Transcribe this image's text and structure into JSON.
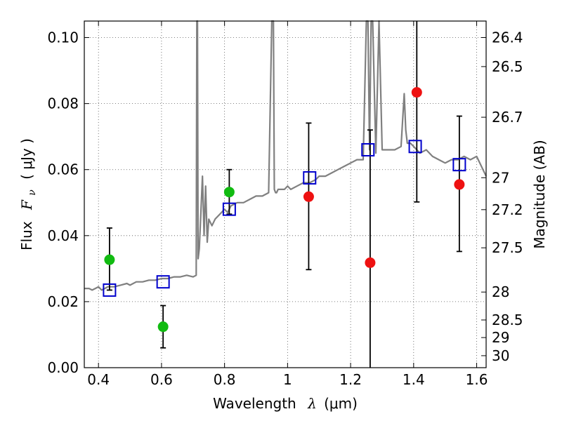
{
  "chart_data": {
    "type": "scatter",
    "title": "",
    "xlabel": "Wavelength",
    "xlabel_symbol": "λ",
    "xlabel_unit": "(μm)",
    "ylabel": "Flux",
    "ylabel_symbol": "F",
    "ylabel_subscript": "ν",
    "ylabel_unit": "( μJy )",
    "ylabel_right": "Magnitude (AB)",
    "xlim": [
      0.355,
      1.63
    ],
    "ylim": [
      0.0,
      0.105
    ],
    "grid": true,
    "x_ticks": [
      {
        "value": 0.4,
        "label": "0.4"
      },
      {
        "value": 0.6,
        "label": "0.6"
      },
      {
        "value": 0.8,
        "label": "0.8"
      },
      {
        "value": 1.0,
        "label": "1"
      },
      {
        "value": 1.2,
        "label": "1.2"
      },
      {
        "value": 1.4,
        "label": "1.4"
      },
      {
        "value": 1.6,
        "label": "1.6"
      }
    ],
    "y_ticks": [
      {
        "value": 0.0,
        "label": "0.00"
      },
      {
        "value": 0.02,
        "label": "0.02"
      },
      {
        "value": 0.04,
        "label": "0.04"
      },
      {
        "value": 0.06,
        "label": "0.06"
      },
      {
        "value": 0.08,
        "label": "0.08"
      },
      {
        "value": 0.1,
        "label": "0.10"
      }
    ],
    "right_ticks": [
      {
        "value": 26.4,
        "label": "26.4"
      },
      {
        "value": 26.5,
        "label": "26.5"
      },
      {
        "value": 26.7,
        "label": "26.7"
      },
      {
        "value": 27.0,
        "label": "27"
      },
      {
        "value": 27.2,
        "label": "27.2"
      },
      {
        "value": 27.5,
        "label": "27.5"
      },
      {
        "value": 28.0,
        "label": "28"
      },
      {
        "value": 28.5,
        "label": "28.5"
      },
      {
        "value": 29.0,
        "label": "29"
      },
      {
        "value": 30.0,
        "label": "30"
      }
    ],
    "colors": {
      "spectrum": "#808080",
      "model_box": "#0000cc",
      "green_obs": "#11bb11",
      "red_obs": "#ee1111",
      "errorbar": "#000000",
      "grid": "#555555"
    },
    "spectrum": {
      "x": [
        0.355,
        0.37,
        0.38,
        0.39,
        0.4,
        0.41,
        0.42,
        0.43,
        0.45,
        0.47,
        0.49,
        0.5,
        0.52,
        0.54,
        0.56,
        0.58,
        0.6,
        0.62,
        0.64,
        0.66,
        0.68,
        0.7,
        0.71,
        0.712,
        0.714,
        0.716,
        0.72,
        0.73,
        0.735,
        0.74,
        0.745,
        0.75,
        0.76,
        0.77,
        0.78,
        0.79,
        0.8,
        0.81,
        0.82,
        0.84,
        0.86,
        0.88,
        0.9,
        0.92,
        0.94,
        0.95,
        0.955,
        0.958,
        0.962,
        0.965,
        0.97,
        0.99,
        1.0,
        1.01,
        1.03,
        1.05,
        1.07,
        1.09,
        1.1,
        1.12,
        1.14,
        1.16,
        1.18,
        1.2,
        1.22,
        1.24,
        1.25,
        1.255,
        1.26,
        1.265,
        1.27,
        1.28,
        1.29,
        1.3,
        1.32,
        1.34,
        1.36,
        1.37,
        1.375,
        1.38,
        1.39,
        1.4,
        1.42,
        1.44,
        1.46,
        1.48,
        1.5,
        1.52,
        1.54,
        1.56,
        1.58,
        1.6,
        1.62,
        1.63
      ],
      "y": [
        0.024,
        0.024,
        0.0235,
        0.024,
        0.0245,
        0.0235,
        0.024,
        0.0245,
        0.0245,
        0.025,
        0.0255,
        0.025,
        0.026,
        0.026,
        0.0265,
        0.0265,
        0.027,
        0.027,
        0.0275,
        0.0275,
        0.028,
        0.0275,
        0.028,
        0.105,
        0.105,
        0.033,
        0.036,
        0.058,
        0.04,
        0.055,
        0.038,
        0.045,
        0.043,
        0.045,
        0.046,
        0.047,
        0.048,
        0.047,
        0.049,
        0.05,
        0.05,
        0.051,
        0.052,
        0.052,
        0.053,
        0.105,
        0.105,
        0.054,
        0.053,
        0.053,
        0.054,
        0.054,
        0.055,
        0.054,
        0.055,
        0.056,
        0.056,
        0.057,
        0.058,
        0.058,
        0.059,
        0.06,
        0.061,
        0.062,
        0.063,
        0.063,
        0.105,
        0.105,
        0.066,
        0.105,
        0.105,
        0.065,
        0.105,
        0.066,
        0.066,
        0.066,
        0.067,
        0.083,
        0.072,
        0.068,
        0.068,
        0.067,
        0.065,
        0.066,
        0.064,
        0.063,
        0.062,
        0.063,
        0.063,
        0.064,
        0.063,
        0.064,
        0.06,
        0.058
      ]
    },
    "model_points": {
      "x": [
        0.435,
        0.605,
        0.815,
        1.07,
        1.255,
        1.405,
        1.545
      ],
      "y": [
        0.0235,
        0.026,
        0.048,
        0.0575,
        0.066,
        0.067,
        0.0615
      ]
    },
    "green_points": {
      "x": [
        0.435,
        0.605,
        0.815
      ],
      "y": [
        0.0327,
        0.0124,
        0.0532
      ],
      "yerr_low": [
        0.0235,
        0.006,
        0.0465
      ],
      "yerr_high": [
        0.0423,
        0.0188,
        0.06
      ]
    },
    "red_points": {
      "x": [
        1.067,
        1.262,
        1.41,
        1.545
      ],
      "y": [
        0.0518,
        0.0318,
        0.0834,
        0.0555
      ],
      "yerr_low": [
        0.0297,
        0.0,
        0.0502,
        0.0352
      ],
      "yerr_high": [
        0.0741,
        0.072,
        0.105,
        0.0762
      ]
    }
  }
}
